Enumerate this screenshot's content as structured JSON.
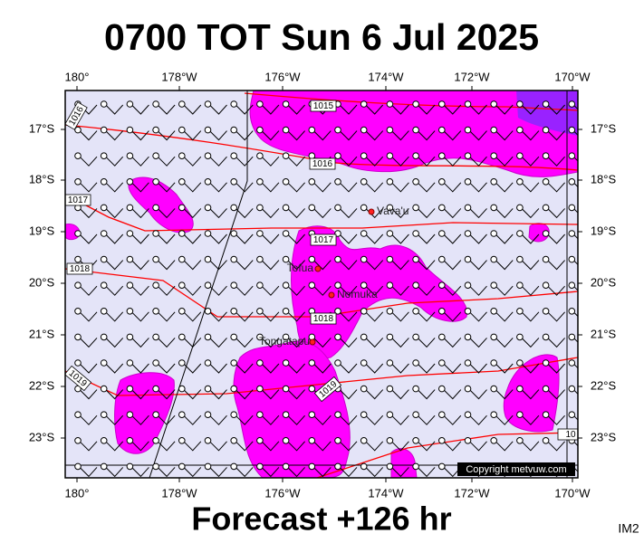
{
  "header": {
    "title": "0700 TOT Sun 6 Jul 2025"
  },
  "map": {
    "longitude_labels": [
      "180°",
      "178°W",
      "176°W",
      "174°W",
      "172°W",
      "170°W"
    ],
    "latitude_labels": [
      "17°S",
      "18°S",
      "19°S",
      "20°S",
      "21°S",
      "22°S",
      "23°S"
    ],
    "places": [
      "Vava'u",
      "Tofua",
      "Nomuka",
      "Tongatapu"
    ],
    "isobar_labels": [
      "1015",
      "1016",
      "1016",
      "1017",
      "1017",
      "1018",
      "1018",
      "1019",
      "1019",
      "10"
    ],
    "copyright": "Copyright metvuw.com"
  },
  "footer": {
    "forecast": "Forecast +126 hr",
    "image_id": "IM2"
  }
}
